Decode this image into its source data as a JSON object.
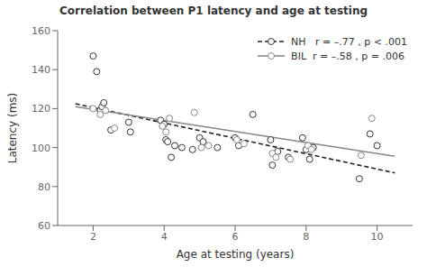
{
  "chart_data": {
    "type": "scatter",
    "title": "Correlation between P1 latency and age at testing",
    "xlabel": "Age at testing (years)",
    "ylabel": "Latency (ms)",
    "xlim": [
      1.0,
      11.0
    ],
    "ylim": [
      60,
      160
    ],
    "xticks": [
      2,
      4,
      6,
      8,
      10
    ],
    "yticks": [
      60,
      80,
      100,
      120,
      140,
      160
    ],
    "grid": false,
    "legend": "upper right",
    "series": [
      {
        "name": "NH   r = –.77 , p < .001",
        "type": "scatter",
        "marker": "open_circle",
        "color": "#333333",
        "x": [
          2.0,
          2.1,
          2.2,
          2.25,
          2.3,
          2.5,
          3.0,
          3.05,
          3.9,
          4.0,
          4.05,
          4.1,
          4.2,
          4.3,
          4.5,
          4.8,
          5.0,
          5.1,
          5.5,
          6.0,
          6.1,
          6.5,
          7.0,
          7.05,
          7.2,
          7.5,
          7.9,
          8.0,
          8.1,
          8.2,
          9.5,
          9.8,
          10.0
        ],
        "values": [
          147,
          139,
          119,
          121,
          123,
          109,
          113,
          108,
          114,
          112,
          104,
          103,
          95,
          101,
          100,
          99,
          105,
          103,
          100,
          105,
          101,
          117,
          104,
          91,
          98,
          95,
          105,
          99,
          94,
          100,
          84,
          107,
          101
        ],
        "fit": {
          "type": "line",
          "line_style": "dashed",
          "color": "#222222",
          "x": [
            1.5,
            10.5
          ],
          "values": [
            122.5,
            87.0
          ]
        }
      },
      {
        "name": "BIL  r = –.58 , p = .006",
        "type": "scatter",
        "marker": "open_circle",
        "color": "#888888",
        "x": [
          2.0,
          2.2,
          2.35,
          2.6,
          3.95,
          4.05,
          4.15,
          4.85,
          5.05,
          5.25,
          6.05,
          6.25,
          7.05,
          7.15,
          7.55,
          8.05,
          8.15,
          9.55,
          9.85
        ],
        "values": [
          120,
          117,
          119,
          110,
          111,
          108,
          115,
          118,
          100,
          101,
          104,
          102,
          97,
          95,
          94,
          101,
          99,
          96,
          115
        ],
        "fit": {
          "type": "line",
          "line_style": "solid",
          "color": "#888888",
          "x": [
            1.5,
            10.5
          ],
          "values": [
            121.0,
            95.5
          ]
        }
      }
    ]
  }
}
